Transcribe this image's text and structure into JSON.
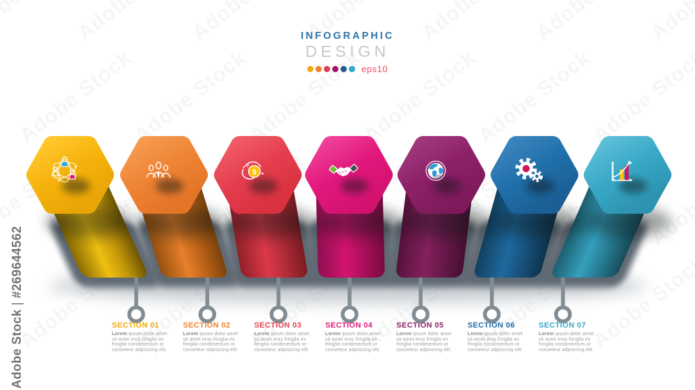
{
  "header": {
    "title_line1": "INFOGRAPHIC",
    "title_line2": "DESIGN",
    "eps_label": "eps10",
    "title1_color": "#2d74a9",
    "title2_color": "#c4c8cb",
    "dot_colors": [
      "#F2A90B",
      "#F0832F",
      "#E63A56",
      "#A3156C",
      "#205E90",
      "#2FA7C9"
    ]
  },
  "watermark": {
    "tile_text": "Adobe Stock",
    "side_brand": "Adobe Stock",
    "side_separator": "|",
    "side_id": "#269644562"
  },
  "icons_text": {
    "coin_symbol": "$"
  },
  "colors": {
    "band": "#5e6973",
    "stem": "#828c93",
    "ground": "#9aa3aa"
  },
  "section_body": {
    "lead": "Lorem",
    "line1_rest": " ipsum dolor amet",
    "lines": [
      "sit amet eros fringlia ex",
      "fringlia condimentum or",
      "conseteur adpisicing elit."
    ]
  },
  "sections": [
    {
      "label": "SECTION 01",
      "accent": "#F2A90B",
      "icon": "team-network",
      "top": [
        "#FFC930",
        "#F6B30C",
        "#E9A506"
      ],
      "body_grad": [
        "#8A6A03",
        "#EFC011",
        "#BD920A",
        "#6E5502"
      ]
    },
    {
      "label": "SECTION 02",
      "accent": "#F0832F",
      "icon": "team-group",
      "top": [
        "#F79C52",
        "#EE8434",
        "#E47426"
      ],
      "body_grad": [
        "#94500F",
        "#E8802B",
        "#B55F16",
        "#7A420C"
      ]
    },
    {
      "label": "SECTION 03",
      "accent": "#E33F4B",
      "icon": "money-hand",
      "top": [
        "#F05E69",
        "#E53E4E",
        "#D93140"
      ],
      "body_grad": [
        "#8F2029",
        "#DC3948",
        "#AC2A36",
        "#791B23"
      ]
    },
    {
      "label": "SECTION 04",
      "accent": "#E2187D",
      "icon": "handshake",
      "top": [
        "#F0449B",
        "#E2187D",
        "#D31270"
      ],
      "body_grad": [
        "#8E0F4E",
        "#D31371",
        "#A60F58",
        "#770B3F"
      ]
    },
    {
      "label": "SECTION 05",
      "accent": "#8D2168",
      "icon": "globe",
      "top": [
        "#A23A7E",
        "#8D2168",
        "#7E1A5B"
      ],
      "body_grad": [
        "#541239",
        "#84205F",
        "#641846",
        "#450F30"
      ]
    },
    {
      "label": "SECTION 06",
      "accent": "#2170AB",
      "icon": "gears",
      "top": [
        "#3D86BE",
        "#2170AB",
        "#1A5F95"
      ],
      "body_grad": [
        "#12405F",
        "#1E699F",
        "#174E75",
        "#0E334E"
      ]
    },
    {
      "label": "SECTION 07",
      "accent": "#38A9C7",
      "icon": "growth-chart",
      "top": [
        "#5FC0D9",
        "#38A9C7",
        "#2D93B0"
      ],
      "body_grad": [
        "#1D5F71",
        "#349FBC",
        "#26778C",
        "#174C5C"
      ]
    }
  ]
}
